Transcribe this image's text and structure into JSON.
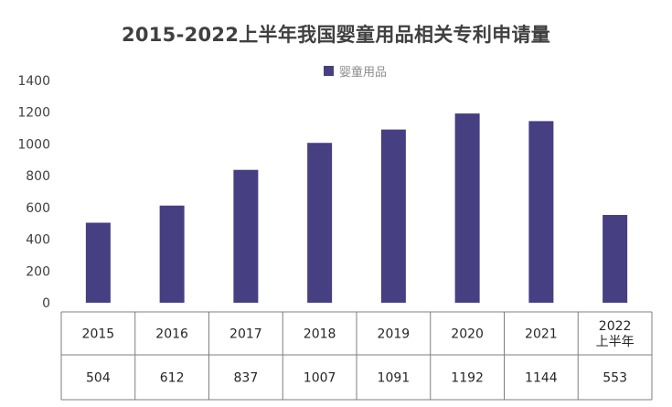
{
  "chart_data": {
    "type": "bar",
    "title": "2015-2022上半年我国婴童用品相关专利申请量",
    "categories": [
      "2015",
      "2016",
      "2017",
      "2018",
      "2019",
      "2020",
      "2021",
      "2022\n上半年"
    ],
    "series": [
      {
        "name": "婴童用品",
        "values": [
          504,
          612,
          837,
          1007,
          1091,
          1192,
          1144,
          553
        ],
        "color": "#463f82"
      }
    ],
    "data_table": [
      "504",
      "612",
      "837",
      "1007",
      "1091",
      "1192",
      "1144",
      "553"
    ],
    "y_ticks": [
      "0",
      "200",
      "400",
      "600",
      "800",
      "1000",
      "1200",
      "1400"
    ],
    "ylim": [
      0,
      1400
    ],
    "grid": false,
    "legend_position": "top-center"
  }
}
